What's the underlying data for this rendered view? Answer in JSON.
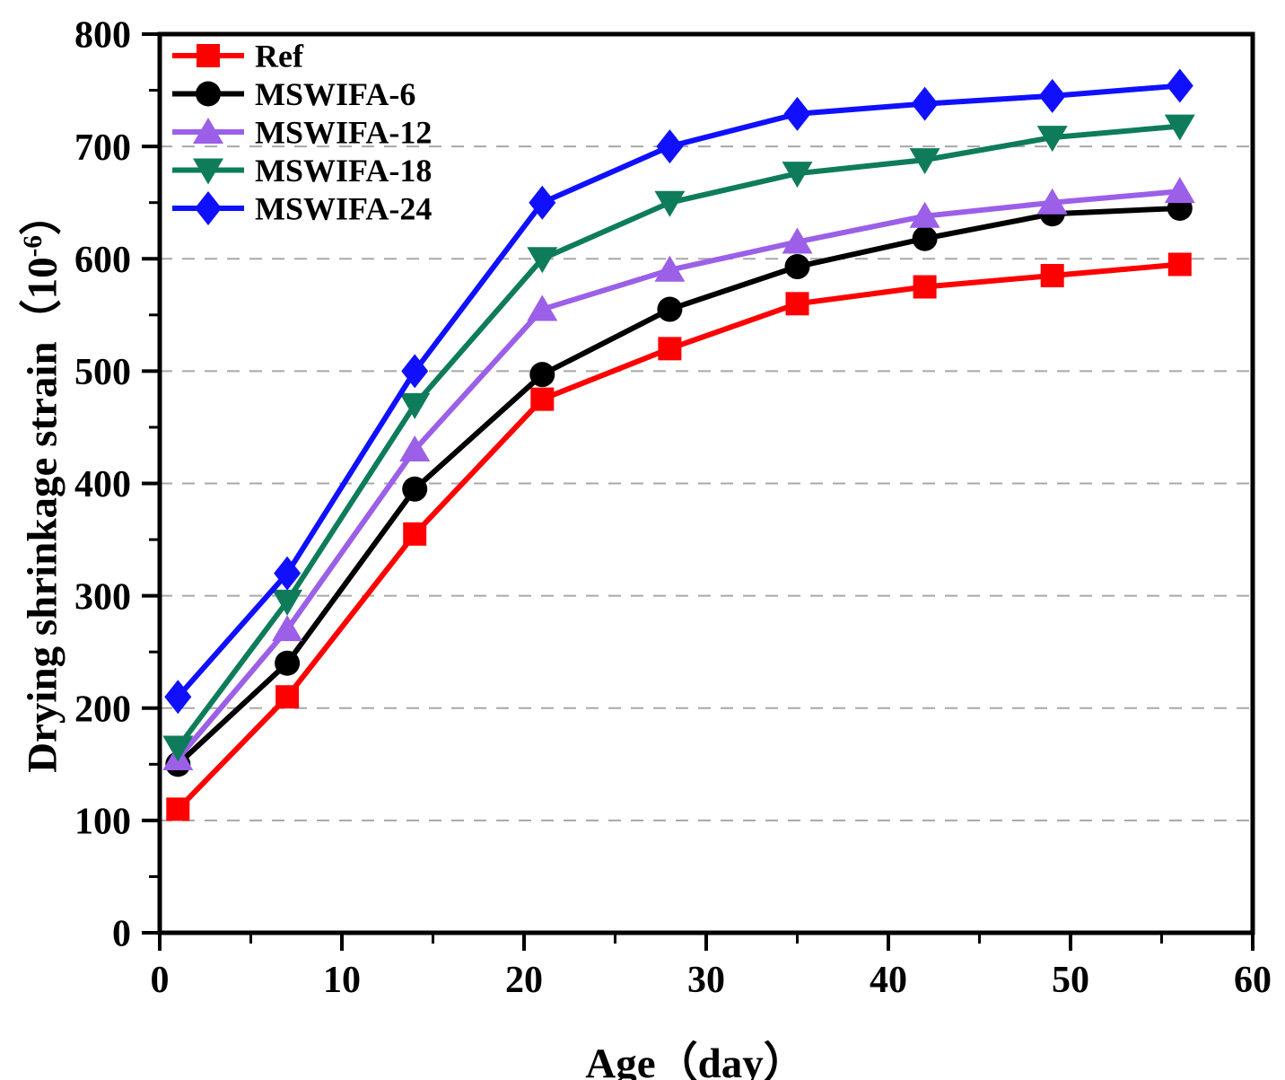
{
  "chart_data": {
    "type": "line",
    "title": "",
    "xlabel": "Age（day）",
    "ylabel": "Drying shrinkage strain（10⁻⁶）",
    "ylabel_parts": {
      "prefix": "Drying shrinkage strain（10",
      "sup": "-6",
      "suffix": "）"
    },
    "xlim": [
      0,
      60
    ],
    "ylim": [
      0,
      800
    ],
    "x_major_ticks": [
      0,
      10,
      20,
      30,
      40,
      50,
      60
    ],
    "x_minor_ticks": [
      5,
      15,
      25,
      35,
      45,
      55
    ],
    "y_major_ticks": [
      0,
      100,
      200,
      300,
      400,
      500,
      600,
      700,
      800
    ],
    "y_minor_step": 50,
    "grid": "horizontal dashed gridlines at each y major tick (100-700)",
    "grid_color": "#a8a8a8",
    "legend_position": "top-left inside plot, no frame",
    "x": [
      1,
      7,
      14,
      21,
      28,
      35,
      42,
      49,
      56
    ],
    "series": [
      {
        "name": "Ref",
        "color": "#ff0000",
        "marker": "square",
        "values": [
          110,
          210,
          355,
          475,
          520,
          560,
          575,
          585,
          595
        ]
      },
      {
        "name": "MSWIFA-6",
        "color": "#000000",
        "marker": "circle",
        "values": [
          150,
          240,
          395,
          497,
          555,
          593,
          618,
          640,
          645
        ]
      },
      {
        "name": "MSWIFA-12",
        "color": "#9b5fe8",
        "marker": "triangle-up",
        "values": [
          155,
          270,
          430,
          555,
          590,
          615,
          638,
          650,
          660
        ]
      },
      {
        "name": "MSWIFA-18",
        "color": "#0e7c5a",
        "marker": "triangle-down",
        "values": [
          165,
          295,
          470,
          600,
          650,
          676,
          688,
          708,
          718
        ]
      },
      {
        "name": "MSWIFA-24",
        "color": "#1010ff",
        "marker": "diamond",
        "values": [
          210,
          320,
          500,
          650,
          700,
          729,
          738,
          745,
          754
        ]
      }
    ]
  }
}
